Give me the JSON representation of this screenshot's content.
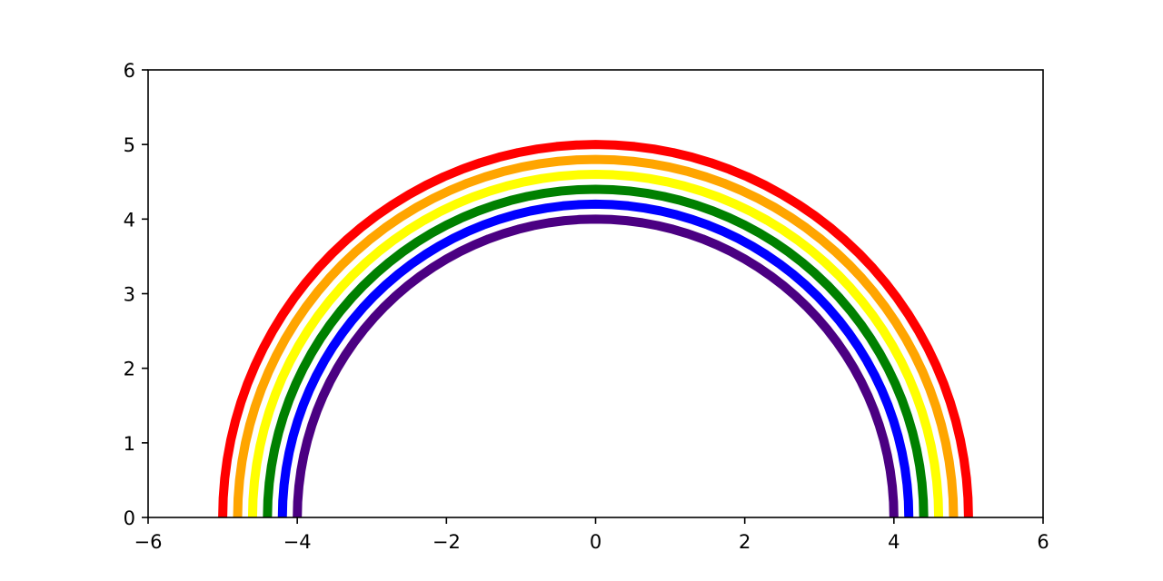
{
  "chart_data": {
    "type": "line",
    "title": "",
    "xlabel": "",
    "ylabel": "",
    "xlim": [
      -6,
      6
    ],
    "ylim": [
      0,
      6
    ],
    "grid": false,
    "x_ticks": [
      -6,
      -4,
      -2,
      0,
      2,
      4,
      6
    ],
    "x_tick_labels": [
      "−6",
      "−4",
      "−2",
      "0",
      "2",
      "4",
      "6"
    ],
    "y_ticks": [
      0,
      1,
      2,
      3,
      4,
      5,
      6
    ],
    "y_tick_labels": [
      "0",
      "1",
      "2",
      "3",
      "4",
      "5",
      "6"
    ],
    "series": [
      {
        "color": "#ff0000",
        "shape": "semicircle",
        "center": [
          0,
          0
        ],
        "radius": 5.0
      },
      {
        "color": "#ffa500",
        "shape": "semicircle",
        "center": [
          0,
          0
        ],
        "radius": 4.8
      },
      {
        "color": "#ffff00",
        "shape": "semicircle",
        "center": [
          0,
          0
        ],
        "radius": 4.6
      },
      {
        "color": "#008000",
        "shape": "semicircle",
        "center": [
          0,
          0
        ],
        "radius": 4.4
      },
      {
        "color": "#0000ff",
        "shape": "semicircle",
        "center": [
          0,
          0
        ],
        "radius": 4.2
      },
      {
        "color": "#4b0082",
        "shape": "semicircle",
        "center": [
          0,
          0
        ],
        "radius": 4.0
      }
    ]
  }
}
